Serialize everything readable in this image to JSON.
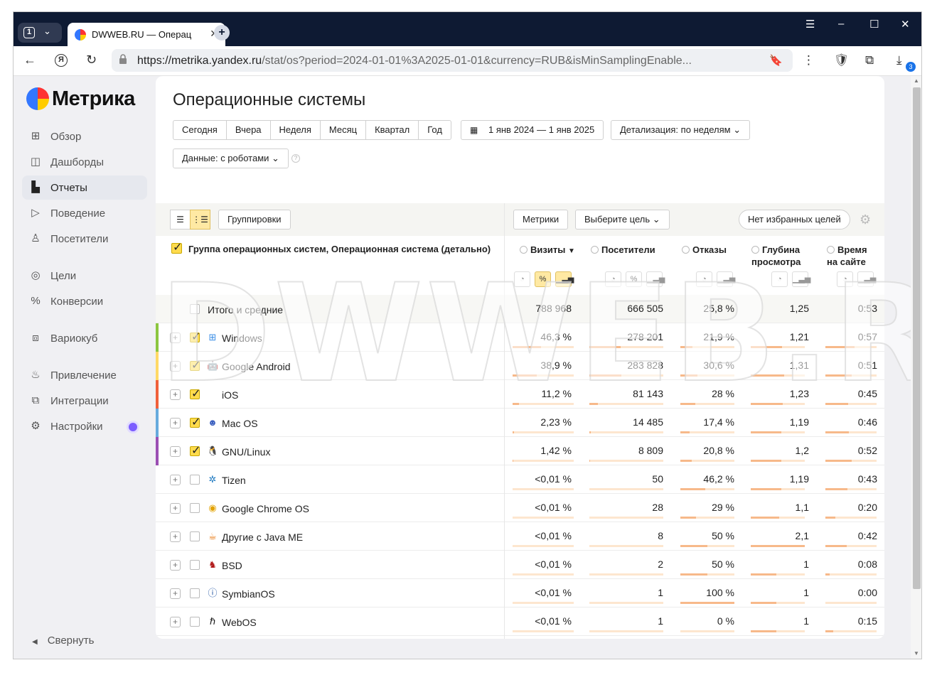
{
  "browser": {
    "tab_count": "1",
    "tab_title": "DWWEB.RU — Операц",
    "url_host": "https://metrika.yandex.ru",
    "url_path": "/stat/os?period=2024-01-01%3A2025-01-01&currency=RUB&isMinSamplingEnable...",
    "download_count": "3"
  },
  "sidebar": {
    "logo": "Метрика",
    "items": [
      {
        "label": "Обзор",
        "icon": "grid-icon"
      },
      {
        "label": "Дашборды",
        "icon": "dashboard-icon"
      },
      {
        "label": "Отчеты",
        "icon": "bar-chart-icon"
      },
      {
        "label": "Поведение",
        "icon": "play-icon"
      },
      {
        "label": "Посетители",
        "icon": "person-icon"
      },
      {
        "label": "Цели",
        "icon": "target-icon"
      },
      {
        "label": "Конверсии",
        "icon": "percent-icon"
      },
      {
        "label": "Вариокуб",
        "icon": "cube-icon"
      },
      {
        "label": "Привлечение",
        "icon": "flame-icon"
      },
      {
        "label": "Интеграции",
        "icon": "puzzle-icon"
      },
      {
        "label": "Настройки",
        "icon": "gear-icon"
      }
    ],
    "collapse": "Свернуть"
  },
  "page": {
    "title": "Операционные системы",
    "periods": [
      "Сегодня",
      "Вчера",
      "Неделя",
      "Месяц",
      "Квартал",
      "Год"
    ],
    "date_range": "1 янв 2024 — 1 янв 2025",
    "detail": "Детализация: по неделям",
    "data_filter": "Данные: с роботами"
  },
  "toolbar": {
    "groupings": "Группировки",
    "metrics": "Метрики",
    "goal": "Выберите цель",
    "favorites": "Нет избранных целей"
  },
  "table": {
    "dimension_title": "Группа операционных систем, Операционная система (детально)",
    "columns": [
      {
        "label": "Визиты",
        "sort": "▼"
      },
      {
        "label": "Посетители"
      },
      {
        "label": "Отказы"
      },
      {
        "label": "Глубина просмотра"
      },
      {
        "label": "Время на сайте"
      }
    ],
    "total": {
      "name": "Итого и средние",
      "values": [
        "788 968",
        "666 505",
        "25,8 %",
        "1,25",
        "0:53"
      ]
    },
    "rows": [
      {
        "name": "Windows",
        "icon": "windows-icon",
        "checked": true,
        "stripe": "#8cc63f",
        "values": [
          "46,3 %",
          "278 201",
          "21,9 %",
          "1,21",
          "0:57"
        ],
        "bars": [
          0.46,
          0.42,
          0.22,
          0.58,
          0.57
        ]
      },
      {
        "name": "Google Android",
        "icon": "android-icon",
        "checked": true,
        "stripe": "#ffd966",
        "values": [
          "38,9 %",
          "283 828",
          "30,6 %",
          "1,31",
          "0:51"
        ],
        "bars": [
          0.39,
          0.43,
          0.31,
          0.62,
          0.51
        ]
      },
      {
        "name": "iOS",
        "icon": "apple-icon",
        "checked": true,
        "stripe": "#f0603a",
        "values": [
          "11,2 %",
          "81 143",
          "28 %",
          "1,23",
          "0:45"
        ],
        "bars": [
          0.11,
          0.12,
          0.28,
          0.59,
          0.45
        ]
      },
      {
        "name": "Mac OS",
        "icon": "macos-icon",
        "checked": true,
        "stripe": "#66aadd",
        "values": [
          "2,23 %",
          "14 485",
          "17,4 %",
          "1,19",
          "0:46"
        ],
        "bars": [
          0.02,
          0.02,
          0.17,
          0.57,
          0.46
        ]
      },
      {
        "name": "GNU/Linux",
        "icon": "linux-icon",
        "checked": true,
        "stripe": "#9b4fb3",
        "values": [
          "1,42 %",
          "8 809",
          "20,8 %",
          "1,2",
          "0:52"
        ],
        "bars": [
          0.01,
          0.01,
          0.21,
          0.57,
          0.52
        ]
      },
      {
        "name": "Tizen",
        "icon": "tizen-icon",
        "checked": false,
        "stripe": "",
        "values": [
          "<0,01 %",
          "50",
          "46,2 %",
          "1,19",
          "0:43"
        ],
        "bars": [
          0,
          0,
          0.46,
          0.57,
          0.43
        ]
      },
      {
        "name": "Google Chrome OS",
        "icon": "chrome-icon",
        "checked": false,
        "stripe": "",
        "values": [
          "<0,01 %",
          "28",
          "29 %",
          "1,1",
          "0:20"
        ],
        "bars": [
          0,
          0,
          0.29,
          0.52,
          0.2
        ]
      },
      {
        "name": "Другие с Java ME",
        "icon": "java-icon",
        "checked": false,
        "stripe": "",
        "values": [
          "<0,01 %",
          "8",
          "50 %",
          "2,1",
          "0:42"
        ],
        "bars": [
          0,
          0,
          0.5,
          1.0,
          0.42
        ]
      },
      {
        "name": "BSD",
        "icon": "bsd-icon",
        "checked": false,
        "stripe": "",
        "values": [
          "<0,01 %",
          "2",
          "50 %",
          "1",
          "0:08"
        ],
        "bars": [
          0,
          0,
          0.5,
          0.48,
          0.08
        ]
      },
      {
        "name": "SymbianOS",
        "icon": "symbian-icon",
        "checked": false,
        "stripe": "",
        "values": [
          "<0,01 %",
          "1",
          "100 %",
          "1",
          "0:00"
        ],
        "bars": [
          0,
          0,
          1.0,
          0.48,
          0
        ]
      },
      {
        "name": "WebOS",
        "icon": "webos-icon",
        "checked": false,
        "stripe": "",
        "values": [
          "<0,01 %",
          "1",
          "0 %",
          "1",
          "0:15"
        ],
        "bars": [
          0,
          0,
          0,
          0.48,
          0.15
        ]
      }
    ]
  },
  "watermark": "DWWEB.RU"
}
